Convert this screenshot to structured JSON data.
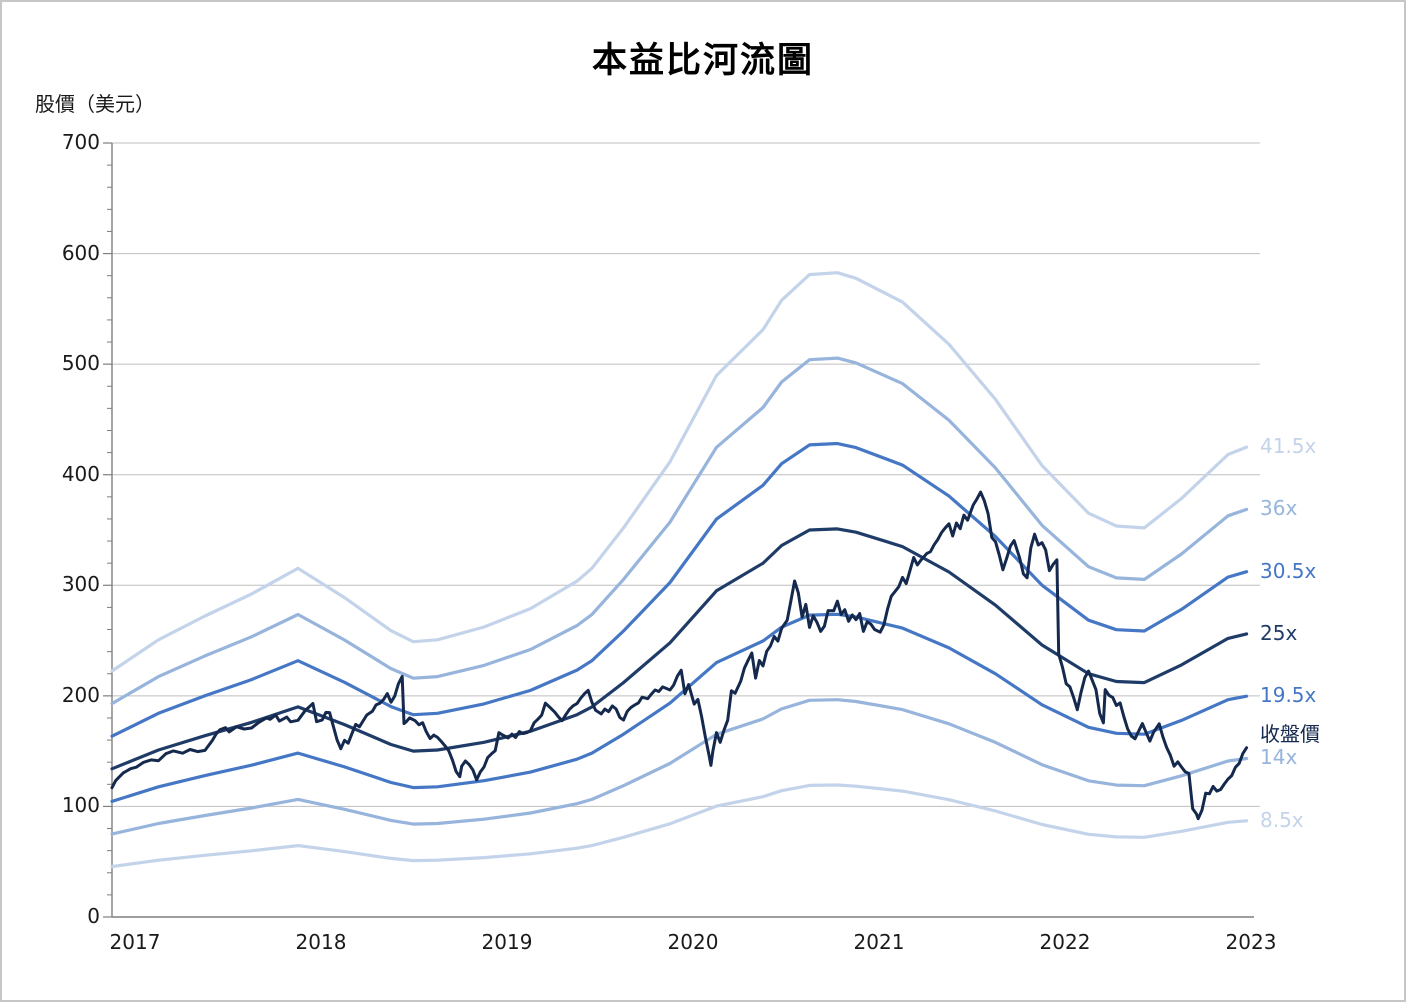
{
  "chart_data": {
    "type": "line",
    "title": "本益比河流圖",
    "ylabel": "股價（美元）",
    "xlabel": "",
    "grid": "horizontal",
    "legend_position": "right-end-of-lines",
    "xlim": [
      2017.0,
      2023.1
    ],
    "ylim": [
      0,
      700
    ],
    "y_ticks": [
      0,
      100,
      200,
      300,
      400,
      500,
      600,
      700
    ],
    "y_minor_tick_step": 20,
    "x_ticks": [
      "2017",
      "2018",
      "2019",
      "2020",
      "2021",
      "2022",
      "2023"
    ],
    "colors": {
      "grid": "#bfbfbf",
      "axis": "#7f7f7f",
      "tick_text": "#1a1a1a",
      "title_text": "#000000"
    },
    "pe_bands": [
      {
        "label": "8.5x",
        "multiple": 8.5,
        "color": "#c3d3ea"
      },
      {
        "label": "14x",
        "multiple": 14,
        "color": "#97b4dc"
      },
      {
        "label": "19.5x",
        "multiple": 19.5,
        "color": "#4577c5"
      },
      {
        "label": "25x",
        "multiple": 25,
        "color": "#1f3c68"
      },
      {
        "label": "30.5x",
        "multiple": 30.5,
        "color": "#4577c5"
      },
      {
        "label": "36x",
        "multiple": 36,
        "color": "#97b4dc"
      },
      {
        "label": "41.5x",
        "multiple": 41.5,
        "color": "#c3d3ea"
      }
    ],
    "close_line": {
      "label": "收盤價",
      "color": "#14294d"
    },
    "pe25_series": [
      [
        2017.0,
        134
      ],
      [
        2017.25,
        151
      ],
      [
        2017.5,
        164
      ],
      [
        2017.75,
        176
      ],
      [
        2018.0,
        190
      ],
      [
        2018.25,
        174
      ],
      [
        2018.5,
        156
      ],
      [
        2018.62,
        150
      ],
      [
        2018.75,
        151
      ],
      [
        2019.0,
        158
      ],
      [
        2019.25,
        168
      ],
      [
        2019.5,
        183
      ],
      [
        2019.58,
        190
      ],
      [
        2019.75,
        212
      ],
      [
        2020.0,
        248
      ],
      [
        2020.25,
        295
      ],
      [
        2020.5,
        320
      ],
      [
        2020.6,
        336
      ],
      [
        2020.75,
        350
      ],
      [
        2020.9,
        351
      ],
      [
        2021.0,
        348
      ],
      [
        2021.25,
        335
      ],
      [
        2021.5,
        312
      ],
      [
        2021.75,
        282
      ],
      [
        2022.0,
        246
      ],
      [
        2022.25,
        220
      ],
      [
        2022.4,
        213
      ],
      [
        2022.55,
        212
      ],
      [
        2022.75,
        228
      ],
      [
        2023.0,
        252
      ],
      [
        2023.1,
        256
      ]
    ],
    "close_series": [
      [
        2017.0,
        116.9
      ],
      [
        2017.02,
        123.4
      ],
      [
        2017.06,
        130.3
      ],
      [
        2017.1,
        134.1
      ],
      [
        2017.13,
        135.5
      ],
      [
        2017.17,
        139.9
      ],
      [
        2017.21,
        142.1
      ],
      [
        2017.25,
        141.4
      ],
      [
        2017.29,
        147.7
      ],
      [
        2017.33,
        150.2
      ],
      [
        2017.38,
        148.1
      ],
      [
        2017.42,
        151.5
      ],
      [
        2017.46,
        149.6
      ],
      [
        2017.5,
        150.7
      ],
      [
        2017.54,
        159.7
      ],
      [
        2017.56,
        165.6
      ],
      [
        2017.58,
        169.3
      ],
      [
        2017.61,
        171.2
      ],
      [
        2017.63,
        167.4
      ],
      [
        2017.67,
        172.0
      ],
      [
        2017.71,
        170.0
      ],
      [
        2017.75,
        170.9
      ],
      [
        2017.79,
        176.1
      ],
      [
        2017.83,
        180.1
      ],
      [
        2017.85,
        178.8
      ],
      [
        2017.88,
        182.7
      ],
      [
        2017.9,
        177.2
      ],
      [
        2017.94,
        180.8
      ],
      [
        2017.96,
        176.5
      ],
      [
        2018.0,
        177.9
      ],
      [
        2018.04,
        186.9
      ],
      [
        2018.08,
        193.1
      ],
      [
        2018.1,
        176.6
      ],
      [
        2018.13,
        178.3
      ],
      [
        2018.15,
        185.0
      ],
      [
        2018.17,
        184.9
      ],
      [
        2018.19,
        172.6
      ],
      [
        2018.21,
        160.1
      ],
      [
        2018.23,
        152.2
      ],
      [
        2018.25,
        159.8
      ],
      [
        2018.27,
        157.2
      ],
      [
        2018.29,
        165.8
      ],
      [
        2018.31,
        174.2
      ],
      [
        2018.33,
        172.0
      ],
      [
        2018.37,
        182.7
      ],
      [
        2018.4,
        186.0
      ],
      [
        2018.42,
        191.8
      ],
      [
        2018.44,
        193.3
      ],
      [
        2018.46,
        196.8
      ],
      [
        2018.48,
        202.0
      ],
      [
        2018.5,
        194.3
      ],
      [
        2018.52,
        199.7
      ],
      [
        2018.54,
        210.9
      ],
      [
        2018.56,
        217.5
      ],
      [
        2018.57,
        174.9
      ],
      [
        2018.58,
        176.3
      ],
      [
        2018.6,
        180.1
      ],
      [
        2018.63,
        177.5
      ],
      [
        2018.65,
        173.8
      ],
      [
        2018.67,
        175.7
      ],
      [
        2018.69,
        167.5
      ],
      [
        2018.71,
        161.4
      ],
      [
        2018.73,
        164.5
      ],
      [
        2018.75,
        162.4
      ],
      [
        2018.77,
        158.8
      ],
      [
        2018.79,
        154.9
      ],
      [
        2018.81,
        150.4
      ],
      [
        2018.83,
        142.1
      ],
      [
        2018.85,
        131.6
      ],
      [
        2018.87,
        126.9
      ],
      [
        2018.88,
        136.4
      ],
      [
        2018.9,
        141.1
      ],
      [
        2018.92,
        137.9
      ],
      [
        2018.94,
        133.2
      ],
      [
        2018.96,
        124.1
      ],
      [
        2018.98,
        131.1
      ],
      [
        2019.0,
        135.7
      ],
      [
        2019.02,
        144.2
      ],
      [
        2019.04,
        147.5
      ],
      [
        2019.06,
        150.4
      ],
      [
        2019.08,
        166.7
      ],
      [
        2019.1,
        164.6
      ],
      [
        2019.13,
        161.9
      ],
      [
        2019.15,
        165.4
      ],
      [
        2019.17,
        162.3
      ],
      [
        2019.19,
        167.7
      ],
      [
        2019.21,
        165.9
      ],
      [
        2019.23,
        166.7
      ],
      [
        2019.25,
        168.7
      ],
      [
        2019.27,
        175.7
      ],
      [
        2019.29,
        178.9
      ],
      [
        2019.31,
        182.6
      ],
      [
        2019.33,
        193.4
      ],
      [
        2019.35,
        190.3
      ],
      [
        2019.38,
        185.3
      ],
      [
        2019.4,
        181.1
      ],
      [
        2019.42,
        177.5
      ],
      [
        2019.44,
        183.0
      ],
      [
        2019.46,
        187.9
      ],
      [
        2019.48,
        191.1
      ],
      [
        2019.5,
        193.0
      ],
      [
        2019.52,
        197.9
      ],
      [
        2019.54,
        201.9
      ],
      [
        2019.56,
        204.9
      ],
      [
        2019.58,
        194.2
      ],
      [
        2019.6,
        187.0
      ],
      [
        2019.63,
        183.7
      ],
      [
        2019.65,
        188.0
      ],
      [
        2019.67,
        185.7
      ],
      [
        2019.69,
        190.9
      ],
      [
        2019.71,
        188.1
      ],
      [
        2019.73,
        180.5
      ],
      [
        2019.75,
        178.1
      ],
      [
        2019.77,
        185.9
      ],
      [
        2019.79,
        189.5
      ],
      [
        2019.81,
        191.7
      ],
      [
        2019.83,
        193.6
      ],
      [
        2019.85,
        198.8
      ],
      [
        2019.88,
        197.4
      ],
      [
        2019.9,
        201.6
      ],
      [
        2019.92,
        205.3
      ],
      [
        2019.94,
        203.9
      ],
      [
        2019.96,
        208.1
      ],
      [
        2020.0,
        205.3
      ],
      [
        2020.02,
        209.8
      ],
      [
        2020.04,
        217.9
      ],
      [
        2020.06,
        223.2
      ],
      [
        2020.08,
        201.9
      ],
      [
        2020.1,
        210.2
      ],
      [
        2020.13,
        192.5
      ],
      [
        2020.15,
        196.8
      ],
      [
        2020.17,
        181.2
      ],
      [
        2020.19,
        163.0
      ],
      [
        2020.21,
        146.0
      ],
      [
        2020.22,
        137.1
      ],
      [
        2020.23,
        149.7
      ],
      [
        2020.25,
        166.8
      ],
      [
        2020.27,
        158.0
      ],
      [
        2020.29,
        168.8
      ],
      [
        2020.31,
        178.0
      ],
      [
        2020.33,
        204.7
      ],
      [
        2020.35,
        202.3
      ],
      [
        2020.38,
        213.2
      ],
      [
        2020.4,
        225.1
      ],
      [
        2020.42,
        232.2
      ],
      [
        2020.44,
        238.8
      ],
      [
        2020.46,
        216.1
      ],
      [
        2020.48,
        232.0
      ],
      [
        2020.5,
        227.1
      ],
      [
        2020.52,
        240.3
      ],
      [
        2020.54,
        245.1
      ],
      [
        2020.56,
        253.7
      ],
      [
        2020.58,
        249.5
      ],
      [
        2020.6,
        261.0
      ],
      [
        2020.63,
        268.4
      ],
      [
        2020.65,
        286.0
      ],
      [
        2020.67,
        303.9
      ],
      [
        2020.69,
        293.2
      ],
      [
        2020.71,
        271.2
      ],
      [
        2020.73,
        282.7
      ],
      [
        2020.75,
        261.9
      ],
      [
        2020.77,
        272.4
      ],
      [
        2020.79,
        266.6
      ],
      [
        2020.81,
        258.3
      ],
      [
        2020.83,
        263.1
      ],
      [
        2020.85,
        277.1
      ],
      [
        2020.88,
        276.9
      ],
      [
        2020.9,
        285.6
      ],
      [
        2020.92,
        273.6
      ],
      [
        2020.94,
        277.9
      ],
      [
        2020.96,
        267.4
      ],
      [
        2020.98,
        273.2
      ],
      [
        2021.0,
        268.9
      ],
      [
        2021.02,
        274.5
      ],
      [
        2021.04,
        258.3
      ],
      [
        2021.06,
        267.1
      ],
      [
        2021.08,
        264.9
      ],
      [
        2021.1,
        260.0
      ],
      [
        2021.13,
        257.6
      ],
      [
        2021.15,
        264.3
      ],
      [
        2021.17,
        278.6
      ],
      [
        2021.19,
        290.1
      ],
      [
        2021.21,
        294.5
      ],
      [
        2021.23,
        298.7
      ],
      [
        2021.25,
        307.1
      ],
      [
        2021.27,
        301.5
      ],
      [
        2021.29,
        313.1
      ],
      [
        2021.31,
        325.1
      ],
      [
        2021.33,
        318.4
      ],
      [
        2021.35,
        323.0
      ],
      [
        2021.38,
        328.7
      ],
      [
        2021.4,
        330.4
      ],
      [
        2021.42,
        336.6
      ],
      [
        2021.44,
        341.4
      ],
      [
        2021.46,
        347.7
      ],
      [
        2021.48,
        352.0
      ],
      [
        2021.5,
        355.6
      ],
      [
        2021.52,
        344.6
      ],
      [
        2021.54,
        356.3
      ],
      [
        2021.56,
        351.2
      ],
      [
        2021.58,
        363.5
      ],
      [
        2021.6,
        358.9
      ],
      [
        2021.63,
        372.6
      ],
      [
        2021.65,
        378.0
      ],
      [
        2021.67,
        384.3
      ],
      [
        2021.69,
        376.5
      ],
      [
        2021.71,
        364.7
      ],
      [
        2021.73,
        343.2
      ],
      [
        2021.75,
        339.4
      ],
      [
        2021.77,
        327.6
      ],
      [
        2021.79,
        314.0
      ],
      [
        2021.81,
        324.6
      ],
      [
        2021.83,
        335.4
      ],
      [
        2021.85,
        340.4
      ],
      [
        2021.88,
        324.5
      ],
      [
        2021.9,
        310.4
      ],
      [
        2021.92,
        306.8
      ],
      [
        2021.94,
        333.7
      ],
      [
        2021.96,
        346.2
      ],
      [
        2021.98,
        336.4
      ],
      [
        2022.0,
        338.5
      ],
      [
        2022.02,
        331.8
      ],
      [
        2022.04,
        313.3
      ],
      [
        2022.06,
        319.0
      ],
      [
        2022.08,
        323.0
      ],
      [
        2022.09,
        237.8
      ],
      [
        2022.11,
        225.8
      ],
      [
        2022.13,
        211.0
      ],
      [
        2022.15,
        208.1
      ],
      [
        2022.17,
        198.5
      ],
      [
        2022.19,
        187.5
      ],
      [
        2022.21,
        203.4
      ],
      [
        2022.23,
        216.5
      ],
      [
        2022.25,
        222.4
      ],
      [
        2022.27,
        214.2
      ],
      [
        2022.29,
        205.8
      ],
      [
        2022.31,
        184.1
      ],
      [
        2022.33,
        175.6
      ],
      [
        2022.34,
        205.7
      ],
      [
        2022.36,
        200.5
      ],
      [
        2022.38,
        198.6
      ],
      [
        2022.4,
        191.3
      ],
      [
        2022.42,
        193.6
      ],
      [
        2022.44,
        181.3
      ],
      [
        2022.46,
        170.2
      ],
      [
        2022.48,
        163.7
      ],
      [
        2022.5,
        161.2
      ],
      [
        2022.52,
        168.2
      ],
      [
        2022.54,
        174.9
      ],
      [
        2022.56,
        166.7
      ],
      [
        2022.58,
        159.1
      ],
      [
        2022.6,
        167.1
      ],
      [
        2022.63,
        174.7
      ],
      [
        2022.65,
        162.9
      ],
      [
        2022.67,
        153.4
      ],
      [
        2022.69,
        146.3
      ],
      [
        2022.71,
        136.4
      ],
      [
        2022.73,
        140.3
      ],
      [
        2022.75,
        135.7
      ],
      [
        2022.77,
        131.3
      ],
      [
        2022.79,
        129.8
      ],
      [
        2022.81,
        97.9
      ],
      [
        2022.83,
        93.2
      ],
      [
        2022.84,
        88.9
      ],
      [
        2022.86,
        96.7
      ],
      [
        2022.88,
        112.0
      ],
      [
        2022.9,
        111.4
      ],
      [
        2022.92,
        118.1
      ],
      [
        2022.94,
        113.9
      ],
      [
        2022.96,
        115.3
      ],
      [
        2022.98,
        120.3
      ],
      [
        2023.0,
        124.7
      ],
      [
        2023.02,
        127.9
      ],
      [
        2023.04,
        135.4
      ],
      [
        2023.06,
        139.0
      ],
      [
        2023.08,
        148.0
      ],
      [
        2023.1,
        153.1
      ]
    ]
  }
}
